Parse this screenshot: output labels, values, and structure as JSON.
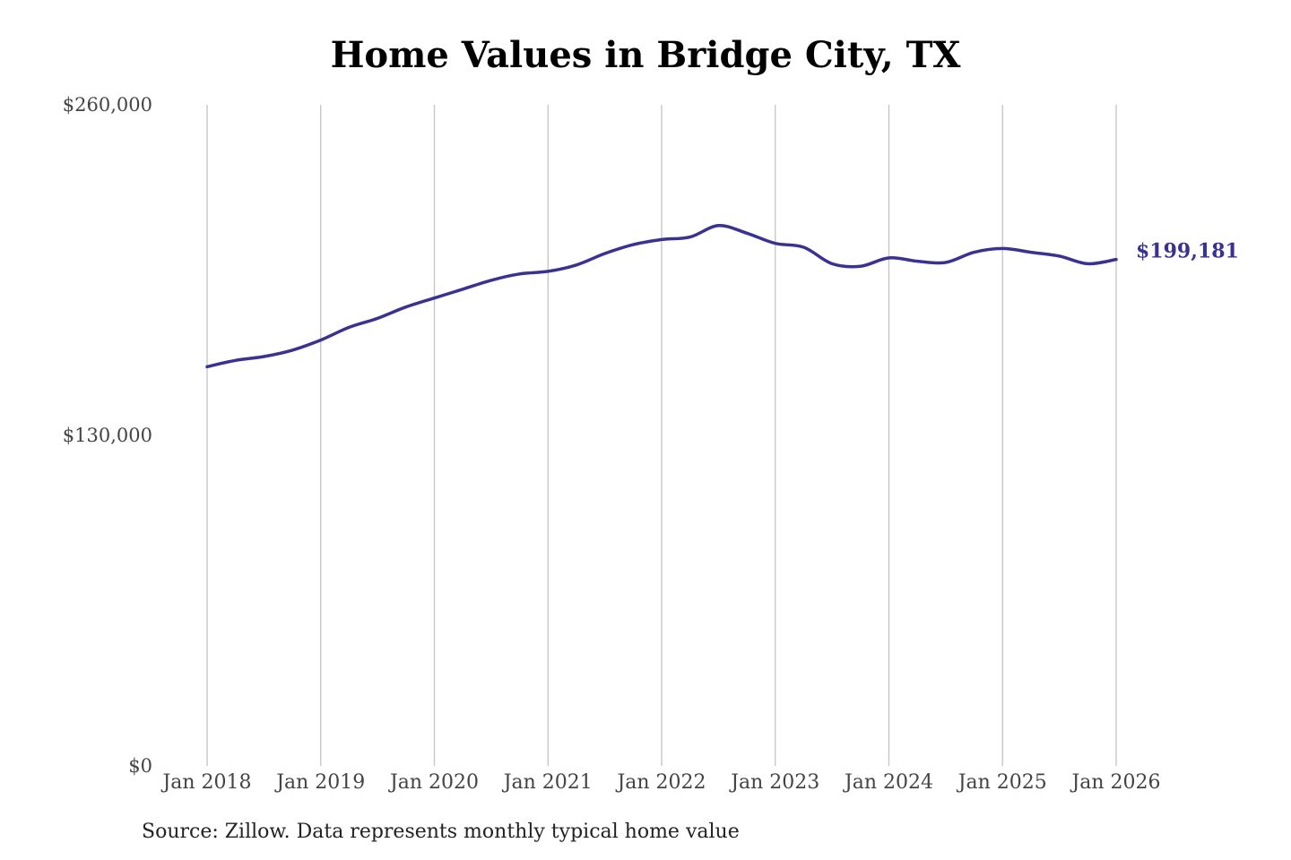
{
  "chart_data": {
    "type": "line",
    "title": "Home Values in Bridge City, TX",
    "xlabel": "",
    "ylabel": "",
    "ylim": [
      0,
      260000
    ],
    "y_ticks": [
      0,
      130000,
      260000
    ],
    "y_tick_labels": [
      "$0",
      "$130,000",
      "$260,000"
    ],
    "x_ticks": [
      "2018-01",
      "2019-01",
      "2020-01",
      "2021-01",
      "2022-01",
      "2023-01",
      "2024-01",
      "2025-01",
      "2026-01"
    ],
    "x_tick_labels": [
      "Jan 2018",
      "Jan 2019",
      "Jan 2020",
      "Jan 2021",
      "Jan 2022",
      "Jan 2023",
      "Jan 2024",
      "Jan 2025",
      "Jan 2026"
    ],
    "grid": "vertical",
    "series": [
      {
        "color": "#3a3291",
        "x": [
          "2018-01",
          "2018-04",
          "2018-07",
          "2018-10",
          "2019-01",
          "2019-04",
          "2019-07",
          "2019-10",
          "2020-01",
          "2020-04",
          "2020-07",
          "2020-10",
          "2021-01",
          "2021-04",
          "2021-07",
          "2021-10",
          "2022-01",
          "2022-04",
          "2022-07",
          "2022-10",
          "2023-01",
          "2023-04",
          "2023-07",
          "2023-10",
          "2024-01",
          "2024-04",
          "2024-07",
          "2024-10",
          "2025-01",
          "2025-04",
          "2025-07",
          "2025-10",
          "2026-01"
        ],
        "values": [
          157000,
          159500,
          161000,
          163500,
          167500,
          172500,
          176000,
          180500,
          184000,
          187500,
          191000,
          193500,
          194500,
          197000,
          201500,
          205000,
          207000,
          208000,
          212500,
          209500,
          205500,
          204000,
          197500,
          196500,
          199800,
          198500,
          198000,
          202000,
          203500,
          202000,
          200500,
          197500,
          199181
        ]
      }
    ],
    "end_label": "$199,181"
  },
  "source_note": "Source: Zillow. Data represents monthly typical home value"
}
